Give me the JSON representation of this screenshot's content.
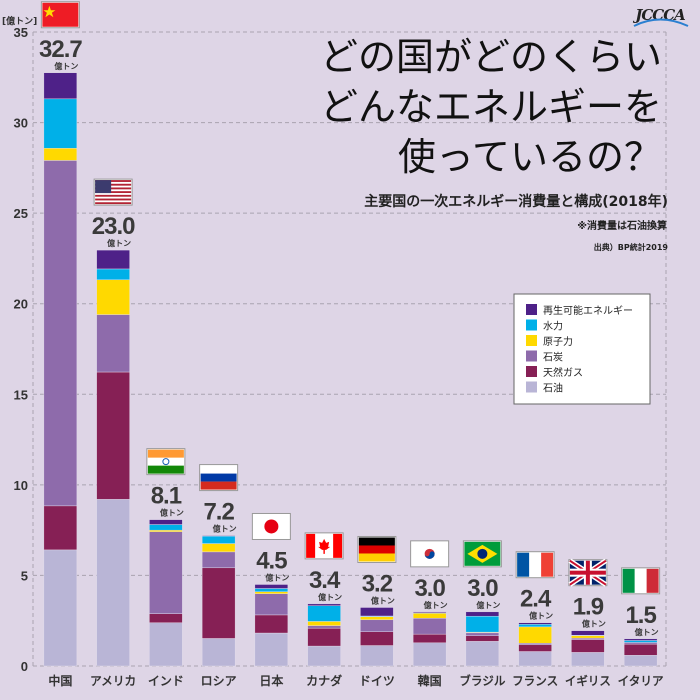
{
  "header": {
    "title_lines": [
      "どの国がどのくらい",
      "どんなエネルギーを",
      "使っているの？"
    ],
    "subtitle": "主要国の一次エネルギー消費量と構成(2018年)",
    "note": "※消費量は石油換算",
    "source": "出典）BP統計2019",
    "logo": "JCCCA"
  },
  "chart_data": {
    "type": "bar",
    "stacked": true,
    "title": "主要国の一次エネルギー消費量と構成(2018年)",
    "ylabel": "[億トン]",
    "ylim": [
      0,
      35
    ],
    "yticks": [
      0,
      5,
      10,
      15,
      20,
      25,
      30,
      35
    ],
    "grid": true,
    "legend_position": "right",
    "value_unit": "億トン",
    "categories": [
      "中国",
      "アメリカ",
      "インド",
      "ロシア",
      "日本",
      "カナダ",
      "ドイツ",
      "韓国",
      "ブラジル",
      "フランス",
      "イギリス",
      "イタリア"
    ],
    "flags": [
      "china",
      "usa",
      "india",
      "russia",
      "japan",
      "canada",
      "germany",
      "korea",
      "brazil",
      "france",
      "uk",
      "italy"
    ],
    "totals": [
      "32.7",
      "23.0",
      "8.1",
      "7.2",
      "4.5",
      "3.4",
      "3.2",
      "3.0",
      "3.0",
      "2.4",
      "1.9",
      "1.5"
    ],
    "series": [
      {
        "name": "石油",
        "color": "#b9b5d6",
        "values": [
          6.41,
          9.2,
          2.39,
          1.52,
          1.82,
          1.1,
          1.13,
          1.28,
          1.36,
          0.8,
          0.75,
          0.59
        ]
      },
      {
        "name": "天然ガス",
        "color": "#862055",
        "values": [
          2.43,
          7.03,
          0.5,
          3.9,
          1.0,
          0.99,
          0.76,
          0.48,
          0.31,
          0.37,
          0.71,
          0.62
        ]
      },
      {
        "name": "石炭",
        "color": "#8e6bab",
        "values": [
          19.07,
          3.17,
          4.52,
          0.88,
          1.17,
          0.14,
          0.66,
          0.88,
          0.16,
          0.09,
          0.08,
          0.09
        ]
      },
      {
        "name": "原子力",
        "color": "#ffd900",
        "values": [
          0.67,
          1.92,
          0.09,
          0.46,
          0.11,
          0.23,
          0.17,
          0.29,
          0.04,
          0.9,
          0.15,
          0.0
        ]
      },
      {
        "name": "水力",
        "color": "#00b0e8",
        "values": [
          2.73,
          0.6,
          0.31,
          0.43,
          0.18,
          0.87,
          0.04,
          0.01,
          0.88,
          0.14,
          0.01,
          0.11
        ]
      },
      {
        "name": "再生可能エネルギー",
        "color": "#4e2188",
        "values": [
          1.44,
          1.04,
          0.27,
          0.01,
          0.22,
          0.1,
          0.47,
          0.05,
          0.24,
          0.09,
          0.25,
          0.09
        ]
      }
    ],
    "legend_order": [
      "再生可能エネルギー",
      "水力",
      "原子力",
      "石炭",
      "天然ガス",
      "石油"
    ]
  }
}
